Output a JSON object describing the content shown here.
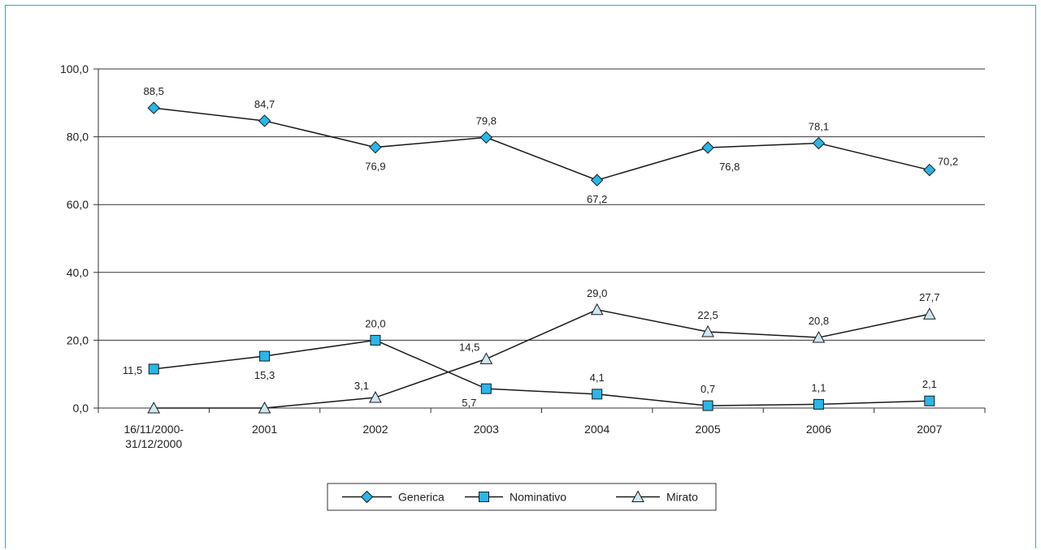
{
  "colors": {
    "frame": "#29a9d6",
    "marker_fill": "#29b6e8",
    "triangle_fill": "#cfe6f3",
    "line": "#1a1a1a",
    "grid": "#333333"
  },
  "chart_data": {
    "type": "line",
    "title": "",
    "xlabel": "",
    "ylabel": "",
    "ylim": [
      0,
      100
    ],
    "yticks": [
      0,
      20,
      40,
      60,
      80,
      100
    ],
    "ytick_labels": [
      "0,0",
      "20,0",
      "40,0",
      "60,0",
      "80,0",
      "100,0"
    ],
    "grid": "horizontal",
    "legend_position": "bottom",
    "categories": [
      [
        "16/11/2000-",
        "31/12/2000"
      ],
      [
        "2001"
      ],
      [
        "2002"
      ],
      [
        "2003"
      ],
      [
        "2004"
      ],
      [
        "2005"
      ],
      [
        "2006"
      ],
      [
        "2007"
      ]
    ],
    "series": [
      {
        "name": "Generica",
        "marker": "diamond",
        "values": [
          88.5,
          84.7,
          76.9,
          79.8,
          67.2,
          76.8,
          78.1,
          70.2
        ],
        "labels": [
          "88,5",
          "84,7",
          "76,9",
          "79,8",
          "67,2",
          "76,8",
          "78,1",
          "70,2"
        ],
        "label_pos": [
          "above",
          "above",
          "below",
          "above",
          "below",
          "below-right",
          "above",
          "right"
        ]
      },
      {
        "name": "Nominativo",
        "marker": "square",
        "values": [
          11.5,
          15.3,
          20.0,
          5.7,
          4.1,
          0.7,
          1.1,
          2.1
        ],
        "labels": [
          "11,5",
          "15,3",
          "20,0",
          "5,7",
          "4,1",
          "0,7",
          "1,1",
          "2,1"
        ],
        "label_pos": [
          "left",
          "below",
          "above",
          "left-below",
          "above",
          "above",
          "above",
          "above"
        ]
      },
      {
        "name": "Mirato",
        "marker": "triangle",
        "values": [
          0.0,
          0.0,
          3.1,
          14.5,
          29.0,
          22.5,
          20.8,
          27.7
        ],
        "labels": [
          "",
          "",
          "3,1",
          "14,5",
          "29,0",
          "22,5",
          "20,8",
          "27,7"
        ],
        "label_pos": [
          "none",
          "none",
          "left-above",
          "left-above",
          "above",
          "above",
          "above",
          "above"
        ]
      }
    ]
  }
}
